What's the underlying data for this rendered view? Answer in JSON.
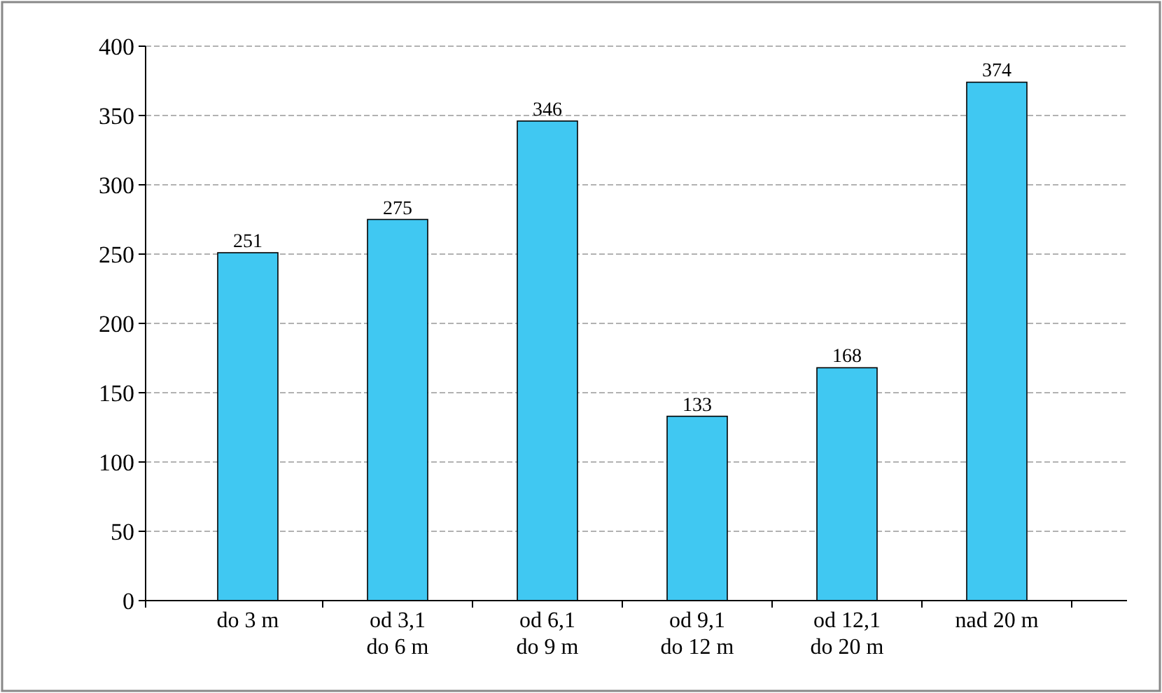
{
  "chart_data": {
    "type": "bar",
    "categories": [
      "do 3 m",
      "od 3,1 do 6 m",
      "od 6,1 do 9 m",
      "od 9,1 do 12 m",
      "od 12,1 do 20 m",
      "nad 20 m"
    ],
    "values": [
      251,
      275,
      346,
      133,
      168,
      374
    ],
    "color": "#40c8f2",
    "ylim": [
      0,
      400
    ],
    "yticks": [
      0,
      50,
      100,
      150,
      200,
      250,
      300,
      350,
      400
    ],
    "grid": "y",
    "data_labels": true
  }
}
